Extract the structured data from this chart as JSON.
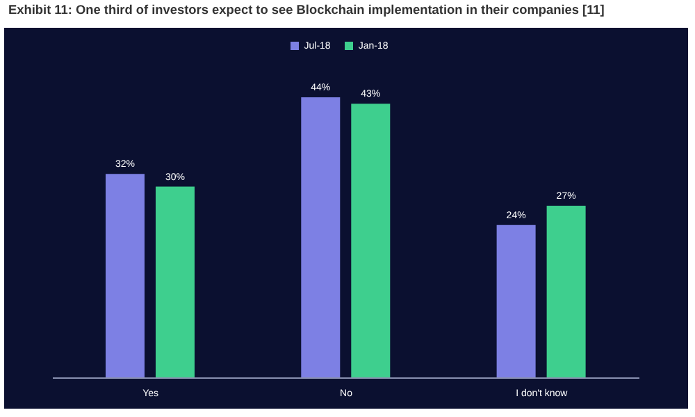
{
  "chart_data": {
    "type": "bar",
    "title": "Exhibit 11: One third of investors expect to see Blockchain implementation in their companies [11]",
    "categories": [
      "Yes",
      "No",
      "I don't know"
    ],
    "series": [
      {
        "name": "Jul-18",
        "color": "#7d80e4",
        "values": [
          32,
          44,
          24
        ],
        "value_labels": [
          "32%",
          "44%",
          "24%"
        ]
      },
      {
        "name": "Jan-18",
        "color": "#3ecf8e",
        "values": [
          30,
          43,
          27
        ],
        "value_labels": [
          "30%",
          "43%",
          "27%"
        ]
      }
    ],
    "legend": "top",
    "grid": false,
    "tick_labels": "x"
  }
}
